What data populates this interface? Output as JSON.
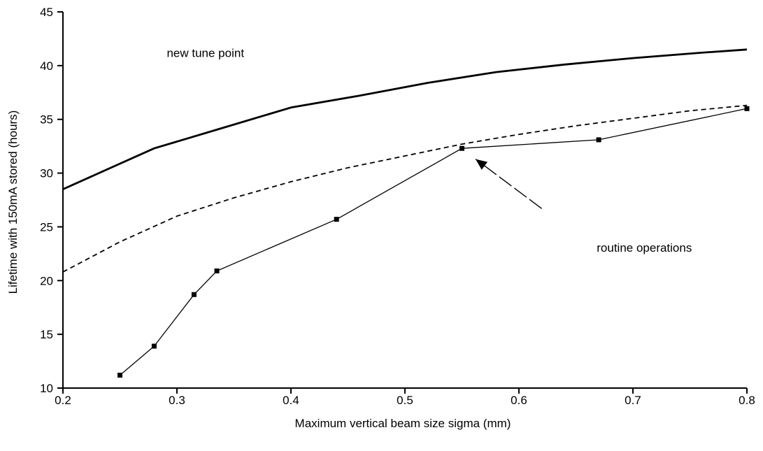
{
  "chart_data": {
    "type": "line",
    "title": "",
    "xlabel": "Maximum vertical beam size sigma (mm)",
    "ylabel": "Lifetime with 150mA stored (hours)",
    "xlim": [
      0.2,
      0.8
    ],
    "ylim": [
      10,
      45
    ],
    "x_ticks": [
      "0.2",
      "0.3",
      "0.4",
      "0.5",
      "0.6",
      "0.7",
      "0.8"
    ],
    "y_ticks": [
      "10",
      "15",
      "20",
      "25",
      "30",
      "35",
      "40",
      "45"
    ],
    "grid": false,
    "legend": "none",
    "series": [
      {
        "style": "solid-thick",
        "x": [
          0.2,
          0.24,
          0.28,
          0.34,
          0.4,
          0.46,
          0.52,
          0.58,
          0.64,
          0.7,
          0.76,
          0.8
        ],
        "y": [
          28.5,
          30.4,
          32.3,
          34.2,
          36.1,
          37.2,
          38.4,
          39.4,
          40.1,
          40.7,
          41.2,
          41.5
        ]
      },
      {
        "style": "dashed",
        "x": [
          0.2,
          0.25,
          0.3,
          0.35,
          0.4,
          0.45,
          0.5,
          0.55,
          0.6,
          0.65,
          0.7,
          0.75,
          0.8
        ],
        "y": [
          20.8,
          23.6,
          26.0,
          27.7,
          29.2,
          30.5,
          31.6,
          32.7,
          33.6,
          34.4,
          35.1,
          35.8,
          36.3
        ]
      },
      {
        "style": "thin-markers",
        "x": [
          0.25,
          0.28,
          0.315,
          0.335,
          0.44,
          0.55,
          0.67,
          0.8
        ],
        "y": [
          11.2,
          13.9,
          18.7,
          20.9,
          25.7,
          32.3,
          33.1,
          36.0
        ]
      }
    ],
    "annotations": [
      {
        "text": "new tune point",
        "x": 0.325,
        "y": 40.8
      },
      {
        "text": "routine operations",
        "x": 0.71,
        "y": 22.7
      }
    ],
    "arrow": {
      "from": [
        0.62,
        26.7
      ],
      "to": [
        0.562,
        31.3
      ]
    }
  }
}
